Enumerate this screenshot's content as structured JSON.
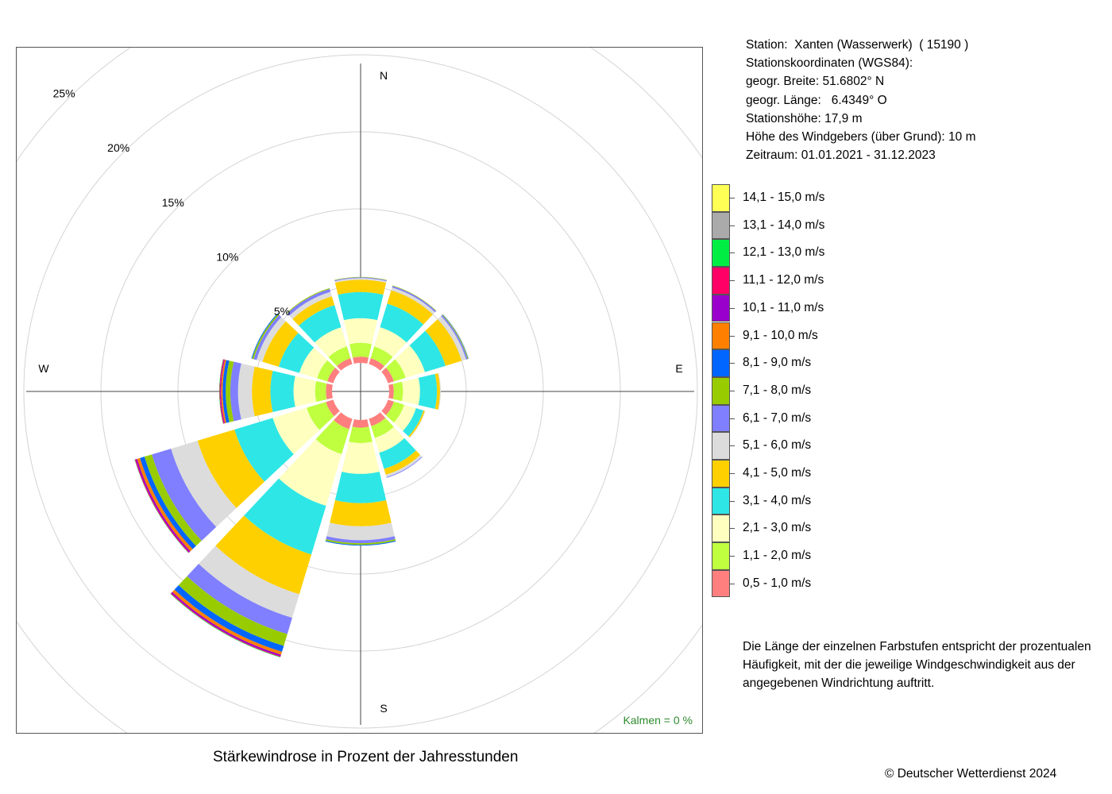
{
  "station": {
    "line1": "Station:  Xanten (Wasserwerk)  ( 15190 )",
    "line2": "Stationskoordinaten (WGS84):",
    "line3": "geogr. Breite: 51.6802° N",
    "line4": "geogr. Länge:   6.4349° O",
    "line5": "Stationshöhe: 17,9 m",
    "line6": "Höhe des Windgebers (über Grund): 10 m",
    "line7": "Zeitraum: 01.01.2021 - 31.12.2023"
  },
  "calms": "Kalmen  =  0 %",
  "caption": "Stärkewindrose in Prozent der Jahresstunden",
  "note": {
    "line1": "Die Länge der einzelnen Farbstufen entspricht der prozentualen",
    "line2": "Häufigkeit, mit der die jeweilige Windgeschwindigkeit aus der",
    "line3": "angegebenen Windrichtung auftritt."
  },
  "copyright": "© Deutscher Wetterdienst  2024",
  "chart_data": {
    "type": "windrose",
    "title": "Stärkewindrose in Prozent der Jahresstunden",
    "directions_deg": [
      0,
      30,
      60,
      90,
      120,
      150,
      180,
      210,
      240,
      270,
      300,
      330
    ],
    "compass_labels": [
      "N",
      "E",
      "S",
      "W"
    ],
    "rings_pct": [
      5,
      10,
      15,
      20,
      25
    ],
    "ring_labels": [
      "5%",
      "10%",
      "15%",
      "20%",
      "25%"
    ],
    "calms_pct": 0,
    "speed_classes": [
      {
        "label": "0,5 - 1,0 m/s",
        "color": "#ff7f7f"
      },
      {
        "label": "1,1 - 2,0 m/s",
        "color": "#bfff3f"
      },
      {
        "label": "2,1 - 3,0 m/s",
        "color": "#ffffbf"
      },
      {
        "label": "3,1 - 4,0 m/s",
        "color": "#2ee6e6"
      },
      {
        "label": "4,1 - 5,0 m/s",
        "color": "#ffd000"
      },
      {
        "label": "5,1 - 6,0 m/s",
        "color": "#dcdcdc"
      },
      {
        "label": "6,1 - 7,0 m/s",
        "color": "#7f7fff"
      },
      {
        "label": "7,1 - 8,0 m/s",
        "color": "#99cc00"
      },
      {
        "label": "8,1 - 9,0 m/s",
        "color": "#0066ff"
      },
      {
        "label": "9,1 - 10,0 m/s",
        "color": "#ff8000"
      },
      {
        "label": "10,1 - 11,0 m/s",
        "color": "#9900cc"
      },
      {
        "label": "11,1 - 12,0 m/s",
        "color": "#ff0066"
      },
      {
        "label": "12,1 - 13,0 m/s",
        "color": "#00ee44"
      },
      {
        "label": "13,1 - 14,0 m/s",
        "color": "#aaaaaa"
      },
      {
        "label": "14,1 - 15,0 m/s",
        "color": "#ffff55"
      }
    ],
    "frequencies_pct": [
      [
        0.4,
        0.9,
        1.6,
        1.7,
        0.8,
        0.1,
        0.05,
        0.03,
        0,
        0,
        0,
        0,
        0,
        0,
        0
      ],
      [
        0.4,
        0.8,
        1.3,
        1.6,
        0.9,
        0.2,
        0.1,
        0.03,
        0,
        0,
        0,
        0,
        0,
        0,
        0
      ],
      [
        0.4,
        0.8,
        1.3,
        1.4,
        1.1,
        0.3,
        0.1,
        0.05,
        0.02,
        0,
        0,
        0,
        0,
        0,
        0
      ],
      [
        0.3,
        0.6,
        1.1,
        1.1,
        0.2,
        0.05,
        0,
        0,
        0,
        0,
        0,
        0,
        0,
        0,
        0
      ],
      [
        0.4,
        0.7,
        0.8,
        0.5,
        0.1,
        0.03,
        0,
        0,
        0,
        0,
        0,
        0,
        0,
        0,
        0
      ],
      [
        0.5,
        0.8,
        1.0,
        1.1,
        0.4,
        0.15,
        0.05,
        0,
        0,
        0,
        0,
        0,
        0,
        0,
        0
      ],
      [
        0.5,
        1.0,
        2.0,
        1.9,
        1.5,
        0.9,
        0.2,
        0.1,
        0.05,
        0,
        0,
        0,
        0,
        0,
        0
      ],
      [
        0.7,
        1.7,
        3.5,
        3.3,
        2.7,
        1.6,
        1.1,
        0.8,
        0.4,
        0.2,
        0.1,
        0.05,
        0.03,
        0,
        0
      ],
      [
        0.5,
        1.3,
        2.3,
        2.6,
        2.5,
        1.8,
        1.3,
        0.5,
        0.3,
        0.2,
        0.1,
        0.05,
        0.02,
        0,
        0
      ],
      [
        0.4,
        0.7,
        1.4,
        1.5,
        1.2,
        0.9,
        0.5,
        0.3,
        0.2,
        0.1,
        0.05,
        0.05,
        0.02,
        0,
        0
      ],
      [
        0.4,
        0.7,
        1.2,
        1.4,
        1.1,
        0.4,
        0.2,
        0.1,
        0.05,
        0,
        0,
        0,
        0,
        0,
        0
      ],
      [
        0.4,
        0.8,
        1.3,
        1.5,
        0.6,
        0.3,
        0.2,
        0.05,
        0,
        0,
        0,
        0,
        0,
        0,
        0
      ]
    ]
  }
}
